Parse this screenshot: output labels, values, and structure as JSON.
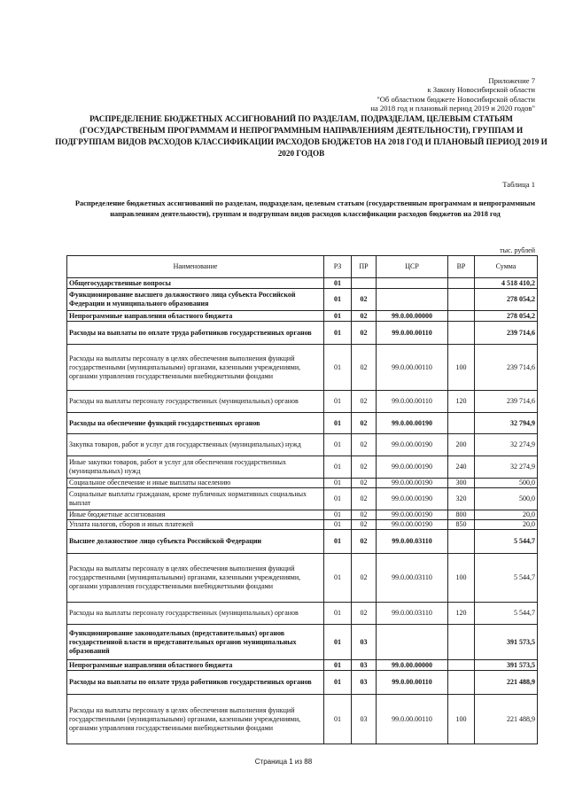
{
  "appendix": {
    "line1": "Приложение 7",
    "line2": "к Закону Новосибирской области",
    "line3": "\"Об областном бюджете Новосибирской области",
    "line4": "на 2018 год и плановый период 2019 и 2020 годов\""
  },
  "title": "РАСПРЕДЕЛЕНИЕ БЮДЖЕТНЫХ АССИГНОВАНИЙ ПО РАЗДЕЛАМ, ПОДРАЗДЕЛАМ, ЦЕЛЕВЫМ СТАТЬЯМ (ГОСУДАРСТВЕНЫМ ПРОГРАММАМ И НЕПРОГРАММНЫМ НАПРАВЛЕНИЯМ ДЕЯТЕЛЬНОСТИ), ГРУППАМ И ПОДГРУППАМ ВИДОВ РАСХОДОВ КЛАССИФИКАЦИИ РАСХОДОВ БЮДЖЕТОВ НА 2018 ГОД И ПЛАНОВЫЙ ПЕРИОД 2019 И 2020 ГОДОВ",
  "table_number": "Таблица 1",
  "subtitle": "Распределение бюджетных ассигнований по разделам, подразделам, целевым статьям (государственным программам и непрограммным направлениям деятельности), группам и подгруппам видов расходов классификации расходов бюджетов на 2018 год",
  "units": "тыс. рублей",
  "table": {
    "headers": [
      "Наименование",
      "РЗ",
      "ПР",
      "ЦСР",
      "ВР",
      "Сумма"
    ],
    "rows": [
      {
        "bold": true,
        "name": "Общегосударственные вопросы",
        "rz": "01",
        "pr": "",
        "csr": "",
        "vr": "",
        "sum": "4 518 410,2"
      },
      {
        "bold": true,
        "name": "Функционирование высшего должностного лица субъекта Российской Федерации и муниципального образования",
        "rz": "01",
        "pr": "02",
        "csr": "",
        "vr": "",
        "sum": "278 054,2"
      },
      {
        "bold": true,
        "name": "Непрограммные направления областного бюджета",
        "rz": "01",
        "pr": "02",
        "csr": "99.0.00.00000",
        "vr": "",
        "sum": "278 054,2"
      },
      {
        "bold": true,
        "name": "Расходы на выплаты по оплате труда работников государственных органов",
        "rz": "01",
        "pr": "02",
        "csr": "99.0.00.00110",
        "vr": "",
        "sum": "239 714,6"
      },
      {
        "bold": false,
        "name": "Расходы на выплаты персоналу в целях обеспечения выполнения функций государственными (муниципальными) органами, казенными учреждениями, органами управления государственными внебюджетными фондами",
        "rz": "01",
        "pr": "02",
        "csr": "99.0.00.00110",
        "vr": "100",
        "sum": "239 714,6"
      },
      {
        "bold": false,
        "name": "Расходы на выплаты персоналу государственных (муниципальных) органов",
        "rz": "01",
        "pr": "02",
        "csr": "99.0.00.00110",
        "vr": "120",
        "sum": "239 714,6"
      },
      {
        "bold": true,
        "name": "Расходы на обеспечение функций государственных органов",
        "rz": "01",
        "pr": "02",
        "csr": "99.0.00.00190",
        "vr": "",
        "sum": "32 794,9"
      },
      {
        "bold": false,
        "name": "Закупка товаров, работ и услуг для государственных (муниципальных) нужд",
        "rz": "01",
        "pr": "02",
        "csr": "99.0.00.00190",
        "vr": "200",
        "sum": "32 274,9"
      },
      {
        "bold": false,
        "name": "Иные закупки товаров, работ и услуг для обеспечения государственных (муниципальных) нужд",
        "rz": "01",
        "pr": "02",
        "csr": "99.0.00.00190",
        "vr": "240",
        "sum": "32 274,9"
      },
      {
        "bold": false,
        "name": "Социальное обеспечение и иные выплаты населению",
        "rz": "01",
        "pr": "02",
        "csr": "99.0.00.00190",
        "vr": "300",
        "sum": "500,0"
      },
      {
        "bold": false,
        "name": "Социальные выплаты гражданам, кроме публичных нормативных социальных выплат",
        "rz": "01",
        "pr": "02",
        "csr": "99.0.00.00190",
        "vr": "320",
        "sum": "500,0"
      },
      {
        "bold": false,
        "name": "Иные бюджетные ассигнования",
        "rz": "01",
        "pr": "02",
        "csr": "99.0.00.00190",
        "vr": "800",
        "sum": "20,0"
      },
      {
        "bold": false,
        "name": "Уплата налогов, сборов и иных платежей",
        "rz": "01",
        "pr": "02",
        "csr": "99.0.00.00190",
        "vr": "850",
        "sum": "20,0"
      },
      {
        "bold": true,
        "name": "Высшее должностное лицо субъекта Российской Федерации",
        "rz": "01",
        "pr": "02",
        "csr": "99.0.00.03110",
        "vr": "",
        "sum": "5 544,7"
      },
      {
        "bold": false,
        "name": "Расходы на выплаты персоналу в целях обеспечения выполнения функций государственными (муниципальными) органами, казенными учреждениями, органами управления государственными внебюджетными фондами",
        "rz": "01",
        "pr": "02",
        "csr": "99.0.00.03110",
        "vr": "100",
        "sum": "5 544,7"
      },
      {
        "bold": false,
        "name": "Расходы на выплаты персоналу государственных (муниципальных) органов",
        "rz": "01",
        "pr": "02",
        "csr": "99.0.00.03110",
        "vr": "120",
        "sum": "5 544,7"
      },
      {
        "bold": true,
        "name": "Функционирование законодательных (представительных) органов государственной власти и представительных органов муниципальных образований",
        "rz": "01",
        "pr": "03",
        "csr": "",
        "vr": "",
        "sum": "391 573,5"
      },
      {
        "bold": true,
        "name": "Непрограммные направления областного бюджета",
        "rz": "01",
        "pr": "03",
        "csr": "99.0.00.00000",
        "vr": "",
        "sum": "391 573,5"
      },
      {
        "bold": true,
        "name": "Расходы на выплаты по оплате труда работников государственных органов",
        "rz": "01",
        "pr": "03",
        "csr": "99.0.00.00110",
        "vr": "",
        "sum": "221 488,9"
      },
      {
        "bold": false,
        "name": "Расходы на выплаты персоналу в целях обеспечения выполнения функций государственными (муниципальными) органами, казенными учреждениями, органами управления государственными внебюджетными фондами",
        "rz": "01",
        "pr": "03",
        "csr": "99.0.00.00110",
        "vr": "100",
        "sum": "221 488,9"
      }
    ]
  },
  "footer": "Страница 1 из 88"
}
